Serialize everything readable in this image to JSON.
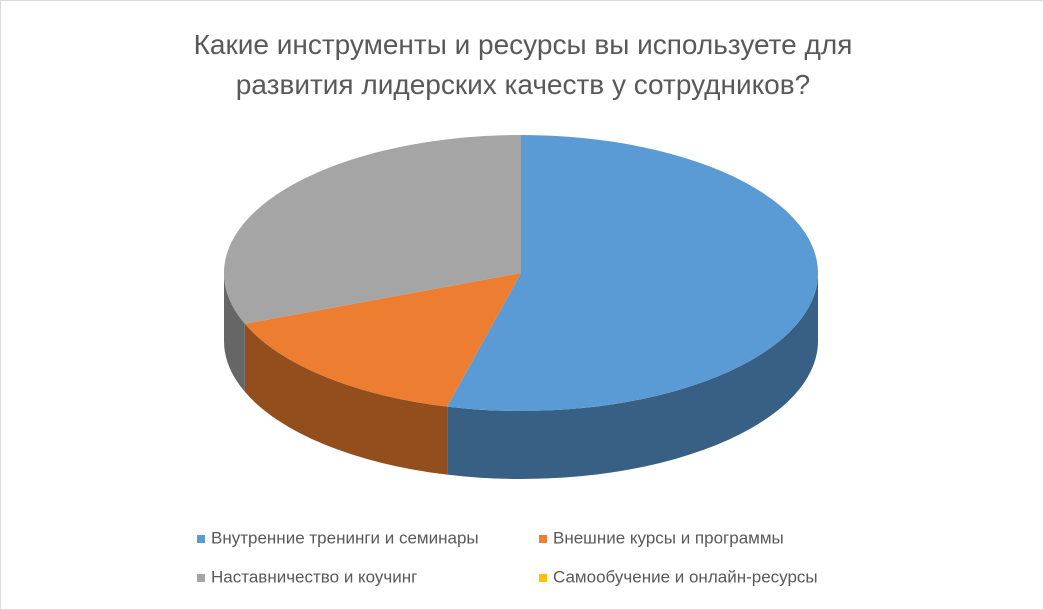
{
  "chart_data": {
    "type": "pie",
    "title": "Какие инструменты и ресурсы вы используете для развития лидерских качеств у сотрудников?",
    "categories": [
      "Внутренние тренинги и семинары",
      "Внешние курсы и программы",
      "Наставничество и коучинг",
      "Самообучение и онлайн-ресурсы"
    ],
    "values": [
      54,
      15,
      31,
      0
    ],
    "colors": [
      "#5b9bd5",
      "#ed7d31",
      "#a5a5a5",
      "#ffc000"
    ]
  }
}
